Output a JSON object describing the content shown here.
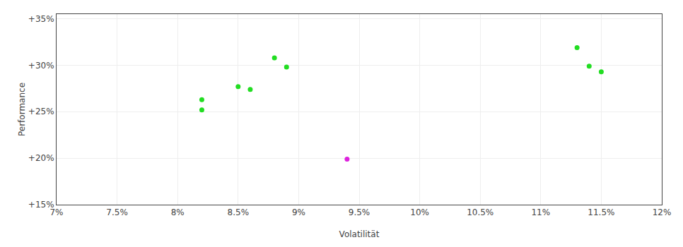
{
  "chart_data": {
    "type": "scatter",
    "xlabel": "Volatilität",
    "ylabel": "Performance",
    "xlim": [
      0.07,
      0.12
    ],
    "ylim": [
      0.15,
      0.355
    ],
    "xticks": [
      {
        "value": 0.07,
        "label": "7%"
      },
      {
        "value": 0.075,
        "label": "7.5%"
      },
      {
        "value": 0.08,
        "label": "8%"
      },
      {
        "value": 0.085,
        "label": "8.5%"
      },
      {
        "value": 0.09,
        "label": "9%"
      },
      {
        "value": 0.095,
        "label": "9.5%"
      },
      {
        "value": 0.1,
        "label": "10%"
      },
      {
        "value": 0.105,
        "label": "10.5%"
      },
      {
        "value": 0.11,
        "label": "11%"
      },
      {
        "value": 0.115,
        "label": "11.5%"
      },
      {
        "value": 0.12,
        "label": "12%"
      }
    ],
    "yticks": [
      {
        "value": 0.15,
        "label": "+15%"
      },
      {
        "value": 0.2,
        "label": "+20%"
      },
      {
        "value": 0.25,
        "label": "+25%"
      },
      {
        "value": 0.3,
        "label": "+30%"
      },
      {
        "value": 0.35,
        "label": "+35%"
      }
    ],
    "grid": true,
    "series": [
      {
        "color": "#22dd22",
        "x": [
          0.082,
          0.082,
          0.085,
          0.086,
          0.088,
          0.089,
          0.113,
          0.114,
          0.115
        ],
        "values": [
          0.263,
          0.252,
          0.277,
          0.274,
          0.308,
          0.298,
          0.319,
          0.299,
          0.293
        ]
      },
      {
        "color": "#dd22dd",
        "x": [
          0.094
        ],
        "values": [
          0.199
        ]
      }
    ]
  }
}
